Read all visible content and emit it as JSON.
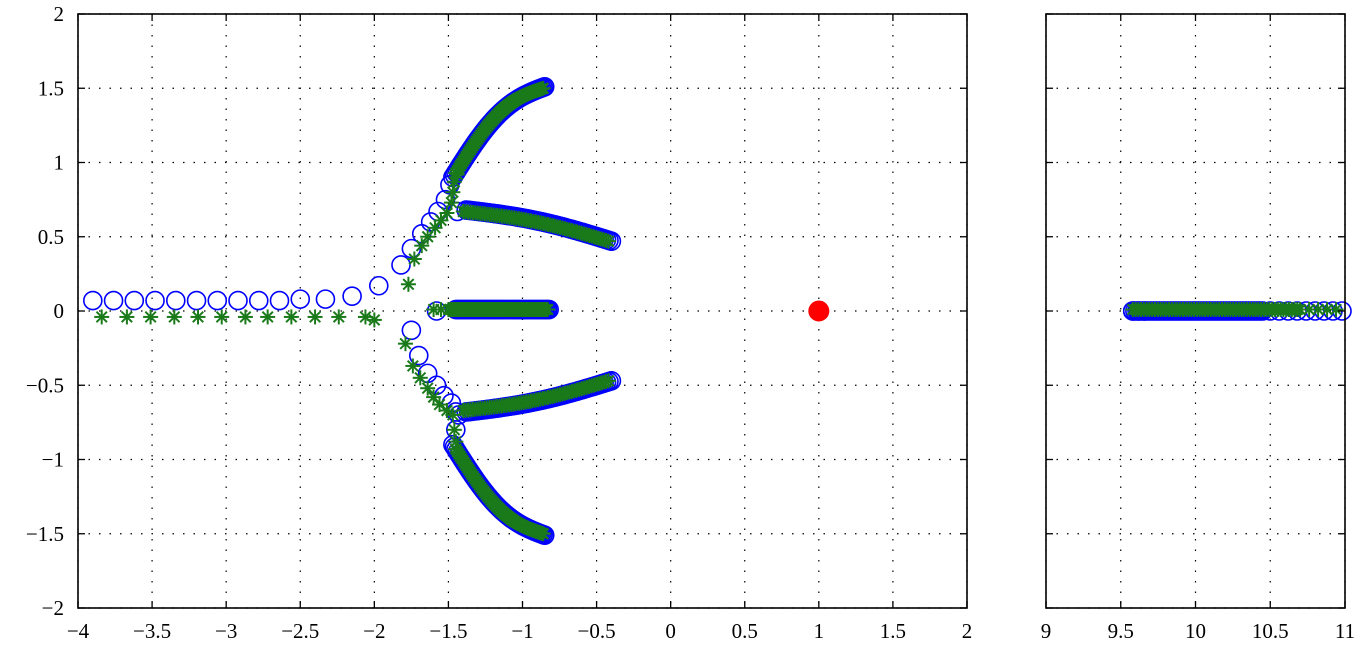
{
  "chart_data": [
    {
      "type": "scatter",
      "title": "",
      "xlabel": "",
      "ylabel": "",
      "xlim": [
        -4,
        2
      ],
      "ylim": [
        -2,
        2
      ],
      "grid": true,
      "xticks": [
        -4,
        -3.5,
        -3,
        -2.5,
        -2,
        -1.5,
        -1,
        -0.5,
        0,
        0.5,
        1,
        1.5,
        2
      ],
      "yticks": [
        -2,
        -1.5,
        -1,
        -0.5,
        0,
        0.5,
        1,
        1.5,
        2
      ],
      "xtick_labels": [
        "−4",
        "−3.5",
        "−3",
        "−2.5",
        "−2",
        "−1.5",
        "−1",
        "−0.5",
        "0",
        "0.5",
        "1",
        "1.5",
        "2"
      ],
      "ytick_labels": [
        "−2",
        "−1.5",
        "−1",
        "−0.5",
        "0",
        "0.5",
        "1",
        "1.5",
        "2"
      ],
      "series": [
        {
          "marker": "circle",
          "color": "#0000ff",
          "points": [
            [
              -3.9,
              0.07
            ],
            [
              -3.76,
              0.07
            ],
            [
              -3.62,
              0.07
            ],
            [
              -3.48,
              0.07
            ],
            [
              -3.34,
              0.07
            ],
            [
              -3.2,
              0.07
            ],
            [
              -3.06,
              0.07
            ],
            [
              -2.92,
              0.07
            ],
            [
              -2.78,
              0.07
            ],
            [
              -2.64,
              0.07
            ],
            [
              -2.5,
              0.08
            ],
            [
              -2.33,
              0.08
            ],
            [
              -2.15,
              0.1
            ],
            [
              -1.97,
              0.17
            ],
            [
              -1.82,
              0.31
            ],
            [
              -1.75,
              0.42
            ],
            [
              -1.68,
              0.52
            ],
            [
              -1.62,
              0.6
            ],
            [
              -1.57,
              0.67
            ],
            [
              -1.52,
              0.75
            ],
            [
              -1.49,
              0.85
            ],
            [
              -1.75,
              -0.13
            ],
            [
              -1.7,
              -0.3
            ],
            [
              -1.64,
              -0.42
            ],
            [
              -1.58,
              -0.5
            ],
            [
              -1.53,
              -0.57
            ],
            [
              -1.48,
              -0.62
            ],
            [
              -1.45,
              -0.68
            ],
            [
              -1.58,
              0.0
            ],
            [
              -1.45,
              -0.8
            ],
            [
              -1.44,
              0.67
            ],
            [
              -1.43,
              -0.7
            ]
          ],
          "arcs": [
            {
              "from": [
                -1.47,
                0.9
              ],
              "to": [
                -0.85,
                1.51
              ],
              "bulge": 0.12
            },
            {
              "from": [
                -1.47,
                -0.9
              ],
              "to": [
                -0.85,
                -1.51
              ],
              "bulge": -0.12
            },
            {
              "from": [
                -1.38,
                0.68
              ],
              "to": [
                -0.4,
                0.47
              ],
              "bulge": 0.03
            },
            {
              "from": [
                -1.38,
                -0.68
              ],
              "to": [
                -0.4,
                -0.47
              ],
              "bulge": -0.03
            },
            {
              "from": [
                -1.45,
                0.01
              ],
              "to": [
                -0.82,
                0.01
              ],
              "bulge": 0
            }
          ]
        },
        {
          "marker": "asterisk",
          "color": "#1a7a1a",
          "points": [
            [
              -3.84,
              -0.04
            ],
            [
              -3.67,
              -0.04
            ],
            [
              -3.51,
              -0.04
            ],
            [
              -3.35,
              -0.04
            ],
            [
              -3.19,
              -0.04
            ],
            [
              -3.03,
              -0.04
            ],
            [
              -2.87,
              -0.04
            ],
            [
              -2.72,
              -0.04
            ],
            [
              -2.56,
              -0.04
            ],
            [
              -2.4,
              -0.04
            ],
            [
              -2.24,
              -0.04
            ],
            [
              -2.06,
              -0.04
            ],
            [
              -2.0,
              -0.06
            ],
            [
              -1.77,
              0.18
            ],
            [
              -1.73,
              0.35
            ],
            [
              -1.68,
              0.44
            ],
            [
              -1.64,
              0.5
            ],
            [
              -1.59,
              0.56
            ],
            [
              -1.55,
              0.61
            ],
            [
              -1.51,
              0.66
            ],
            [
              -1.48,
              0.73
            ],
            [
              -1.47,
              0.8
            ],
            [
              -1.46,
              0.87
            ],
            [
              -1.44,
              0.92
            ],
            [
              -1.79,
              -0.22
            ],
            [
              -1.74,
              -0.37
            ],
            [
              -1.69,
              -0.45
            ],
            [
              -1.64,
              -0.52
            ],
            [
              -1.6,
              -0.58
            ],
            [
              -1.56,
              -0.63
            ],
            [
              -1.51,
              -0.67
            ],
            [
              -1.47,
              -0.7
            ],
            [
              -1.46,
              -0.8
            ],
            [
              -1.45,
              -0.88
            ],
            [
              -1.6,
              0.01
            ],
            [
              -1.55,
              0.01
            ]
          ],
          "arcs": [
            {
              "from": [
                -1.45,
                0.93
              ],
              "to": [
                -0.86,
                1.5
              ],
              "bulge": 0.12
            },
            {
              "from": [
                -1.45,
                -0.93
              ],
              "to": [
                -0.86,
                -1.5
              ],
              "bulge": -0.12
            },
            {
              "from": [
                -1.4,
                0.67
              ],
              "to": [
                -0.42,
                0.47
              ],
              "bulge": 0.03
            },
            {
              "from": [
                -1.4,
                -0.67
              ],
              "to": [
                -0.42,
                -0.47
              ],
              "bulge": -0.03
            },
            {
              "from": [
                -1.5,
                0.01
              ],
              "to": [
                -0.83,
                0.01
              ],
              "bulge": 0
            }
          ]
        },
        {
          "marker": "filled-dot",
          "color": "#ff0000",
          "points": [
            [
              1.0,
              0.0
            ]
          ]
        }
      ]
    },
    {
      "type": "scatter",
      "title": "",
      "xlabel": "",
      "ylabel": "",
      "xlim": [
        9,
        11
      ],
      "ylim": [
        -2,
        2
      ],
      "grid": true,
      "xticks": [
        9,
        9.5,
        10,
        10.5,
        11
      ],
      "yticks": [
        -2,
        -1.5,
        -1,
        -0.5,
        0,
        0.5,
        1,
        1.5,
        2
      ],
      "xtick_labels": [
        "9",
        "9.5",
        "10",
        "10.5",
        "11"
      ],
      "ytick_labels": [],
      "series": [
        {
          "marker": "circle",
          "color": "#0000ff",
          "points": [
            [
              9.58,
              0.0
            ],
            [
              9.62,
              0.0
            ],
            [
              9.66,
              0.0
            ],
            [
              10.5,
              0.0
            ],
            [
              10.56,
              0.0
            ],
            [
              10.62,
              0.0
            ],
            [
              10.68,
              0.0
            ],
            [
              10.74,
              0.0
            ],
            [
              10.8,
              0.0
            ],
            [
              10.86,
              0.0
            ],
            [
              10.92,
              0.0
            ],
            [
              10.98,
              0.0
            ]
          ],
          "arcs": [
            {
              "from": [
                9.58,
                0.0
              ],
              "to": [
                10.45,
                0.0
              ],
              "bulge": 0
            }
          ]
        },
        {
          "marker": "asterisk",
          "color": "#1a7a1a",
          "points": [
            [
              10.76,
              0.01
            ],
            [
              10.82,
              0.01
            ],
            [
              10.88,
              0.01
            ],
            [
              10.94,
              0.01
            ]
          ],
          "arcs": [
            {
              "from": [
                9.58,
                0.01
              ],
              "to": [
                10.7,
                0.01
              ],
              "bulge": 0
            }
          ]
        }
      ]
    }
  ]
}
